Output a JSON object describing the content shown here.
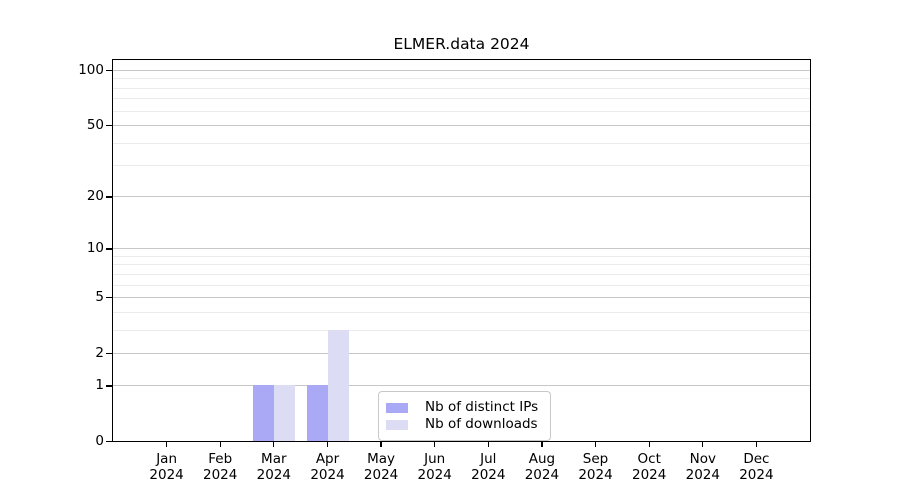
{
  "chart_data": {
    "type": "bar",
    "title": "ELMER.data 2024",
    "months": [
      "Jan",
      "Feb",
      "Mar",
      "Apr",
      "May",
      "Jun",
      "Jul",
      "Aug",
      "Sep",
      "Oct",
      "Nov",
      "Dec"
    ],
    "year": "2024",
    "series": [
      {
        "name": "Nb of distinct IPs",
        "color": "#a9a9f5",
        "values": [
          0,
          0,
          1,
          1,
          0,
          0,
          0,
          0,
          0,
          0,
          0,
          0
        ]
      },
      {
        "name": "Nb of downloads",
        "color": "#dcdcf5",
        "values": [
          0,
          0,
          1,
          3,
          0,
          0,
          0,
          0,
          0,
          0,
          0,
          0
        ]
      }
    ],
    "y_axis": {
      "scale": "log1p",
      "tick_values": [
        0,
        1,
        2,
        5,
        10,
        20,
        50,
        100
      ],
      "tick_labels": [
        "0",
        "1",
        "2",
        "5",
        "10",
        "20",
        "50",
        "100"
      ],
      "minor_gridline_values": [
        3,
        4,
        6,
        7,
        8,
        9,
        30,
        40,
        60,
        70,
        80,
        90
      ],
      "ylim": [
        0,
        115
      ]
    },
    "legend": {
      "labels": [
        "Nb of distinct IPs",
        "Nb of downloads"
      ],
      "location": "lower center"
    },
    "grid": {
      "major_color": "#c7c7c7",
      "minor_color": "#ebebeb"
    },
    "frame_color": "#000000",
    "background_color": "#ffffff"
  }
}
